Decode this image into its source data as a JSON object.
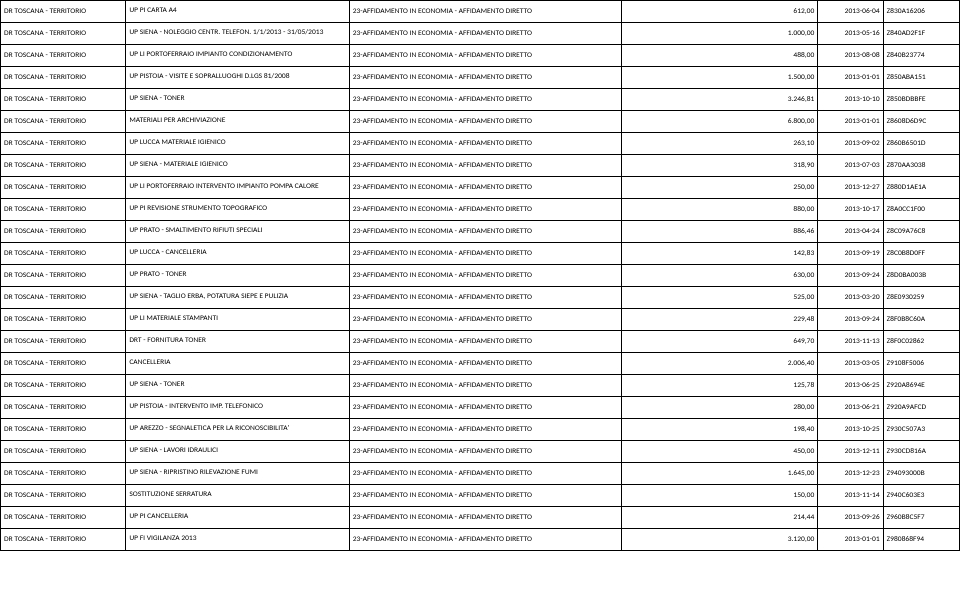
{
  "table": {
    "org_name": "DR TOSCANA - TERRITORIO",
    "type_label": "23-AFFIDAMENTO IN ECONOMIA - AFFIDAMENTO DIRETTO",
    "rows": [
      {
        "desc": "UP PI CARTA A4",
        "amount": "612,00",
        "date": "2013-06-04",
        "code": "Z830A16206"
      },
      {
        "desc": "UP SIENA - NOLEGGIO CENTR. TELEFON. 1/1/2013 - 31/05/2013",
        "amount": "1.000,00",
        "date": "2013-05-16",
        "code": "Z840AD2F1F"
      },
      {
        "desc": "UP LI PORTOFERRAIO IMPIANTO CONDIZIONAMENTO",
        "amount": "488,00",
        "date": "2013-08-08",
        "code": "Z840B23774"
      },
      {
        "desc": "UP PISTOIA - VISITE E SOPRALLUOGHI D.LGS 81/2008",
        "amount": "1.500,00",
        "date": "2013-01-01",
        "code": "Z850ABA151"
      },
      {
        "desc": "UP SIENA - TONER",
        "amount": "3.246,81",
        "date": "2013-10-10",
        "code": "Z850BDBBFE"
      },
      {
        "desc": "MATERIALI PER ARCHIVIAZIONE",
        "amount": "6.800,00",
        "date": "2013-01-01",
        "code": "Z8608D6D9C"
      },
      {
        "desc": "UP LUCCA MATERIALE IGIENICO",
        "amount": "263,10",
        "date": "2013-09-02",
        "code": "Z860B6501D"
      },
      {
        "desc": "UP SIENA - MATERIALE IGIENICO",
        "amount": "318,90",
        "date": "2013-07-03",
        "code": "Z870AA3038"
      },
      {
        "desc": "UP LI PORTOFERRAIO INTERVENTO IMPIANTO POMPA CALORE",
        "amount": "250,00",
        "date": "2013-12-27",
        "code": "Z880D1AE1A"
      },
      {
        "desc": "UP PI REVISIONE STRUMENTO TOPOGRAFICO",
        "amount": "880,00",
        "date": "2013-10-17",
        "code": "Z8A0CC1F00"
      },
      {
        "desc": "UP PRATO - SMALTIMENTO RIFIUTI SPECIALI",
        "amount": "886,46",
        "date": "2013-04-24",
        "code": "Z8C09A76C8"
      },
      {
        "desc": "UP LUCCA - CANCELLERIA",
        "amount": "142,83",
        "date": "2013-09-19",
        "code": "Z8C0B8D0FF"
      },
      {
        "desc": "UP PRATO - TONER",
        "amount": "630,00",
        "date": "2013-09-24",
        "code": "Z8D0BA003B"
      },
      {
        "desc": "UP SIENA - TAGLIO ERBA, POTATURA SIEPE E PULIZIA",
        "amount": "525,00",
        "date": "2013-03-20",
        "code": "Z8E0930259"
      },
      {
        "desc": "UP LI MATERIALE STAMPANTI",
        "amount": "229,48",
        "date": "2013-09-24",
        "code": "Z8F0B8C60A"
      },
      {
        "desc": "DRT - FORNITURA TONER",
        "amount": "649,70",
        "date": "2013-11-13",
        "code": "Z8F0C02862"
      },
      {
        "desc": "CANCELLERIA",
        "amount": "2.006,40",
        "date": "2013-03-05",
        "code": "Z9108F5006"
      },
      {
        "desc": "UP SIENA - TONER",
        "amount": "125,78",
        "date": "2013-06-25",
        "code": "Z920A8694E"
      },
      {
        "desc": "UP PISTOIA - INTERVENTO IMP. TELEFONICO",
        "amount": "280,00",
        "date": "2013-06-21",
        "code": "Z920A9AFCD"
      },
      {
        "desc": "UP AREZZO - SEGNALETICA PER LA RICONOSCIBILITA'",
        "amount": "198,40",
        "date": "2013-10-25",
        "code": "Z930C507A3"
      },
      {
        "desc": "UP SIENA - LAVORI IDRAULICI",
        "amount": "450,00",
        "date": "2013-12-11",
        "code": "Z930CD816A"
      },
      {
        "desc": "UP SIENA - RIPRISTINO RILEVAZIONE FUMI",
        "amount": "1.645,00",
        "date": "2013-12-23",
        "code": "Z94093000B"
      },
      {
        "desc": "SOSTITUZIONE SERRATURA",
        "amount": "150,00",
        "date": "2013-11-14",
        "code": "Z940C603E3"
      },
      {
        "desc": "UP PI CANCELLERIA",
        "amount": "214,44",
        "date": "2013-09-26",
        "code": "Z960B8C5F7"
      },
      {
        "desc": "UP FI  VIGILANZA 2013",
        "amount": "3.120,00",
        "date": "2013-01-01",
        "code": "Z980868F94"
      }
    ]
  }
}
